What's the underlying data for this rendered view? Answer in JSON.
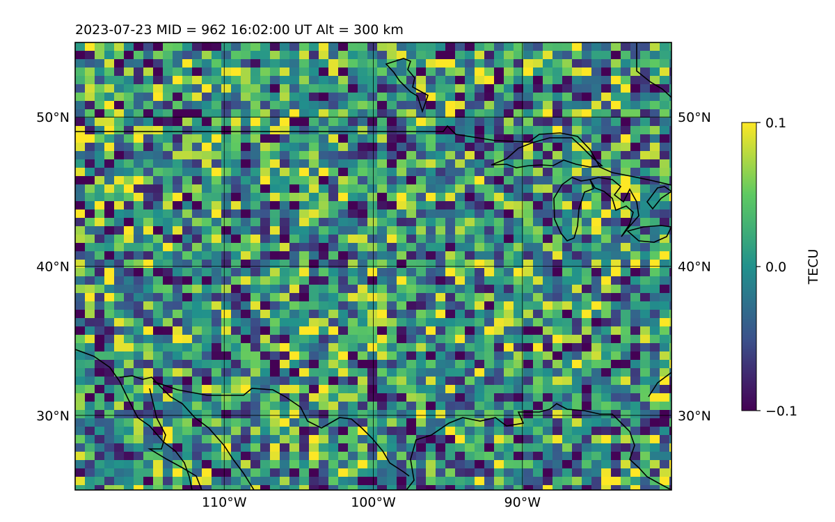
{
  "title": "2023-07-23  MID = 962    16:02:00  UT  Alt = 300 km",
  "map": {
    "lon_range": [
      -120,
      -80
    ],
    "lat_range": [
      25,
      55
    ],
    "grid": true,
    "lon_ticks": [
      {
        "value": -110,
        "label": "110°W"
      },
      {
        "value": -100,
        "label": "100°W"
      },
      {
        "value": -90,
        "label": "90°W"
      }
    ],
    "lat_ticks": [
      {
        "value": 30,
        "label": "30°N"
      },
      {
        "value": 40,
        "label": "40°N"
      },
      {
        "value": 50,
        "label": "50°N"
      }
    ]
  },
  "colorbar": {
    "label": "TECU",
    "min": -0.1,
    "max": 0.1,
    "ticks": [
      {
        "value": 0.1,
        "label": "0.1"
      },
      {
        "value": 0.0,
        "label": "0.0"
      },
      {
        "value": -0.1,
        "label": "−0.1"
      }
    ],
    "colormap": "viridis",
    "colors": [
      "#440154",
      "#3b528b",
      "#21918c",
      "#5ec962",
      "#fde725"
    ]
  }
}
